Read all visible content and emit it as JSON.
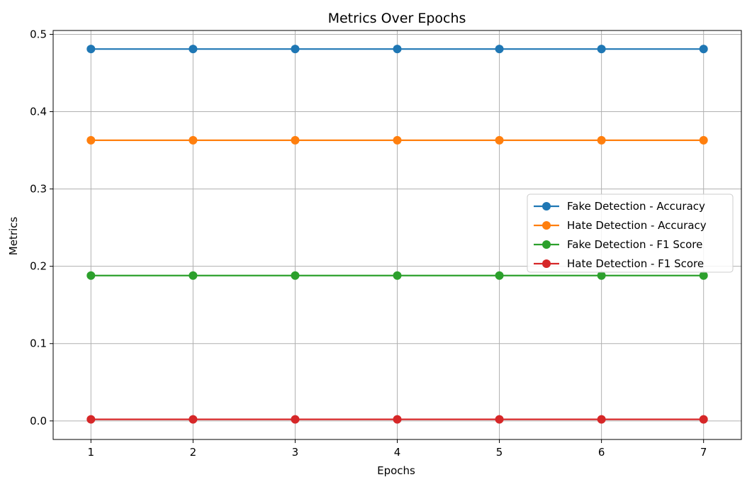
{
  "chart_data": {
    "type": "line",
    "title": "Metrics Over Epochs",
    "xlabel": "Epochs",
    "ylabel": "Metrics",
    "x": [
      1,
      2,
      3,
      4,
      5,
      6,
      7
    ],
    "x_ticks": [
      "1",
      "2",
      "3",
      "4",
      "5",
      "6",
      "7"
    ],
    "xlim": [
      0.63,
      7.37
    ],
    "ylim": [
      -0.024,
      0.505
    ],
    "y_ticks": [
      0.0,
      0.1,
      0.2,
      0.3,
      0.4,
      0.5
    ],
    "y_tick_labels": [
      "0.0",
      "0.1",
      "0.2",
      "0.3",
      "0.4",
      "0.5"
    ],
    "grid": true,
    "legend_position": "center-right",
    "marker": "circle",
    "series": [
      {
        "name": "Fake Detection - Accuracy",
        "color": "#1f77b4",
        "values": [
          0.481,
          0.481,
          0.481,
          0.481,
          0.481,
          0.481,
          0.481
        ]
      },
      {
        "name": "Hate Detection - Accuracy",
        "color": "#ff7f0e",
        "values": [
          0.363,
          0.363,
          0.363,
          0.363,
          0.363,
          0.363,
          0.363
        ]
      },
      {
        "name": "Fake Detection - F1 Score",
        "color": "#2ca02c",
        "values": [
          0.188,
          0.188,
          0.188,
          0.188,
          0.188,
          0.188,
          0.188
        ]
      },
      {
        "name": "Hate Detection - F1 Score",
        "color": "#d62728",
        "values": [
          0.002,
          0.002,
          0.002,
          0.002,
          0.002,
          0.002,
          0.002
        ]
      }
    ]
  }
}
